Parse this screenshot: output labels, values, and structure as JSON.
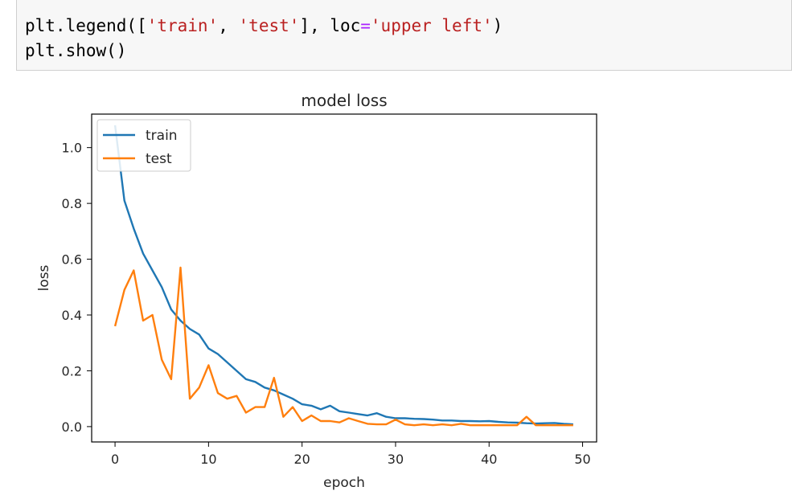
{
  "code_cell": {
    "lines": [
      [
        {
          "text": "plt.legend([",
          "cls": ""
        },
        {
          "text": "'train'",
          "cls": "str"
        },
        {
          "text": ", ",
          "cls": ""
        },
        {
          "text": "'test'",
          "cls": "str"
        },
        {
          "text": "], loc",
          "cls": ""
        },
        {
          "text": "=",
          "cls": "op"
        },
        {
          "text": "'upper left'",
          "cls": "str"
        },
        {
          "text": ")",
          "cls": ""
        }
      ],
      [
        {
          "text": "plt.show()",
          "cls": ""
        }
      ]
    ]
  },
  "chart_data": {
    "type": "line",
    "title": "model loss",
    "xlabel": "epoch",
    "ylabel": "loss",
    "xlim": [
      -2.5,
      51.5
    ],
    "ylim": [
      -0.055,
      1.12
    ],
    "xticks": [
      0,
      10,
      20,
      30,
      40,
      50
    ],
    "yticks": [
      0.0,
      0.2,
      0.4,
      0.6,
      0.8,
      1.0
    ],
    "ytick_labels": [
      "0.0",
      "0.2",
      "0.4",
      "0.6",
      "0.8",
      "1.0"
    ],
    "grid": false,
    "legend": {
      "location": "upper left",
      "entries": [
        "train",
        "test"
      ]
    },
    "x": [
      0,
      1,
      2,
      3,
      4,
      5,
      6,
      7,
      8,
      9,
      10,
      11,
      12,
      13,
      14,
      15,
      16,
      17,
      18,
      19,
      20,
      21,
      22,
      23,
      24,
      25,
      26,
      27,
      28,
      29,
      30,
      31,
      32,
      33,
      34,
      35,
      36,
      37,
      38,
      39,
      40,
      41,
      42,
      43,
      44,
      45,
      46,
      47,
      48,
      49
    ],
    "series": [
      {
        "name": "train",
        "color": "#1f77b4",
        "values": [
          1.08,
          0.81,
          0.71,
          0.62,
          0.56,
          0.5,
          0.42,
          0.38,
          0.35,
          0.33,
          0.28,
          0.26,
          0.23,
          0.2,
          0.17,
          0.16,
          0.14,
          0.13,
          0.115,
          0.1,
          0.08,
          0.075,
          0.062,
          0.075,
          0.055,
          0.05,
          0.045,
          0.04,
          0.048,
          0.035,
          0.03,
          0.03,
          0.028,
          0.027,
          0.025,
          0.022,
          0.022,
          0.02,
          0.02,
          0.019,
          0.02,
          0.017,
          0.015,
          0.014,
          0.012,
          0.011,
          0.012,
          0.013,
          0.01,
          0.008
        ]
      },
      {
        "name": "test",
        "color": "#ff7f0e",
        "values": [
          0.36,
          0.49,
          0.56,
          0.38,
          0.4,
          0.24,
          0.17,
          0.57,
          0.1,
          0.14,
          0.22,
          0.12,
          0.1,
          0.11,
          0.05,
          0.07,
          0.07,
          0.175,
          0.035,
          0.07,
          0.02,
          0.04,
          0.02,
          0.02,
          0.015,
          0.03,
          0.02,
          0.01,
          0.008,
          0.008,
          0.025,
          0.008,
          0.005,
          0.008,
          0.005,
          0.008,
          0.005,
          0.01,
          0.005,
          0.005,
          0.005,
          0.005,
          0.005,
          0.005,
          0.035,
          0.005,
          0.005,
          0.005,
          0.005,
          0.005
        ]
      }
    ]
  }
}
